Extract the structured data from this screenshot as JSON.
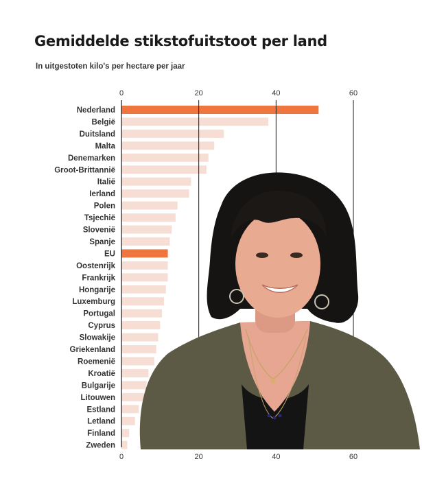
{
  "title": "Gemiddelde stikstofuitstoot per land",
  "subtitle": "In uitgestoten kilo's per hectare per jaar",
  "colors": {
    "highlight": "#f0763f",
    "bar": "#f6ded5",
    "gridline": "#1a1a1a",
    "text": "#333333"
  },
  "photo": {
    "description_icon": "person-photo"
  },
  "chart_data": {
    "type": "bar",
    "orientation": "horizontal",
    "title": "Gemiddelde stikstofuitstoot per land",
    "subtitle": "In uitgestoten kilo's per hectare per jaar",
    "xlabel": "",
    "ylabel": "",
    "xlim": [
      0,
      60
    ],
    "xticks": [
      0,
      20,
      40,
      60
    ],
    "grid": true,
    "legend": "none",
    "highlight": [
      "Nederland",
      "EU"
    ],
    "categories": [
      "Nederland",
      "België",
      "Duitsland",
      "Malta",
      "Denemarken",
      "Groot-Brittannië",
      "Italië",
      "Ierland",
      "Polen",
      "Tsjechië",
      "Slovenië",
      "Spanje",
      "EU",
      "Oostenrijk",
      "Frankrijk",
      "Hongarije",
      "Luxemburg",
      "Portugal",
      "Cyprus",
      "Slowakije",
      "Griekenland",
      "Roemenië",
      "Kroatië",
      "Bulgarije",
      "Litouwen",
      "Estland",
      "Letland",
      "Finland",
      "Zweden"
    ],
    "values": [
      51,
      38,
      26.5,
      24,
      22.5,
      22,
      18,
      17.5,
      14.5,
      14,
      13,
      12.5,
      12,
      12,
      12,
      11.5,
      11,
      10.5,
      10,
      9.5,
      9,
      8.5,
      7,
      6.5,
      6,
      4.5,
      3.5,
      2,
      1.5
    ]
  }
}
